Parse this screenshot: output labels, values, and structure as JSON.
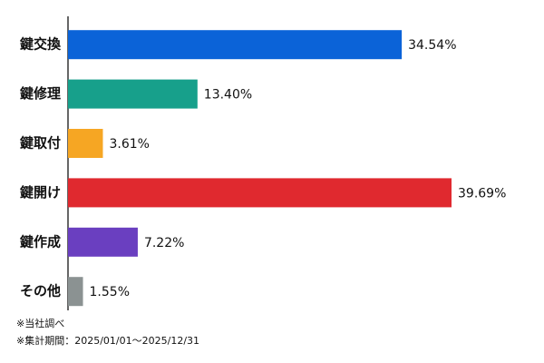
{
  "chart_data": {
    "type": "bar",
    "orientation": "horizontal",
    "categories": [
      "鍵交換",
      "鍵修理",
      "鍵取付",
      "鍵開け",
      "鍵作成",
      "その他"
    ],
    "values": [
      34.54,
      13.4,
      3.61,
      39.69,
      7.22,
      1.55
    ],
    "value_labels": [
      "34.54%",
      "13.40%",
      "3.61%",
      "39.69%",
      "7.22%",
      "1.55%"
    ],
    "colors": [
      "#0b63d8",
      "#17a08b",
      "#f6a623",
      "#e0292f",
      "#6a3fc0",
      "#8b9292"
    ],
    "notes": [
      "※当社調べ",
      "※集計期間：2025/01/01～2025/12/31"
    ]
  }
}
